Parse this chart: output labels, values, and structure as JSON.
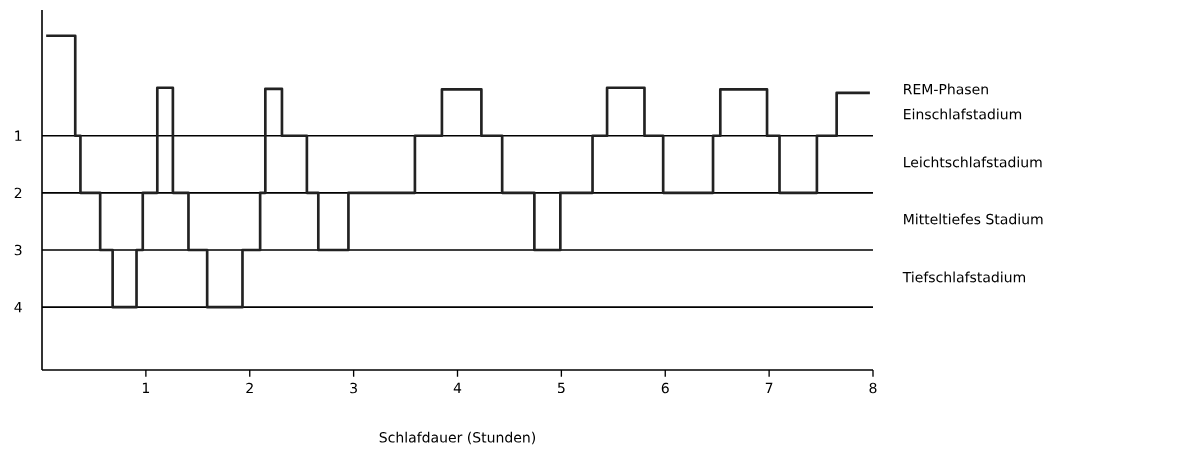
{
  "chart_data": {
    "type": "step",
    "xlabel": "Schlafdauer (Stunden)",
    "x": [
      0.04,
      0.32,
      0.37,
      0.56,
      0.68,
      0.91,
      0.97,
      1.11,
      1.26,
      1.41,
      1.59,
      1.93,
      2.1,
      2.15,
      2.31,
      2.55,
      2.66,
      2.95,
      3.59,
      3.85,
      4.23,
      4.43,
      4.74,
      4.99,
      5.3,
      5.44,
      5.8,
      5.98,
      6.46,
      6.53,
      6.98,
      7.1,
      7.46,
      7.65,
      7.97
    ],
    "values": [
      -0.75,
      1,
      2,
      3,
      4,
      3,
      2,
      0.16,
      2,
      3,
      4,
      3,
      2,
      0.18,
      1,
      2,
      3,
      2,
      1,
      0.19,
      1,
      2,
      3,
      2,
      1,
      0.16,
      1,
      2,
      1,
      0.19,
      1,
      2,
      1,
      0.25,
      0.25
    ],
    "color": "#222222",
    "xlim": [
      0,
      8
    ],
    "ylim": [
      5.1,
      -1.2
    ],
    "xticks": [
      1,
      2,
      3,
      4,
      5,
      6,
      7,
      8
    ],
    "yticks": [
      1,
      2,
      3,
      4
    ],
    "grid": "y",
    "annotations": [
      "REM-Phasen",
      "Einschlafstadium",
      "Leichtschlafstadium",
      "Mitteltiefes Stadium",
      "Tiefschlafstadium"
    ]
  }
}
